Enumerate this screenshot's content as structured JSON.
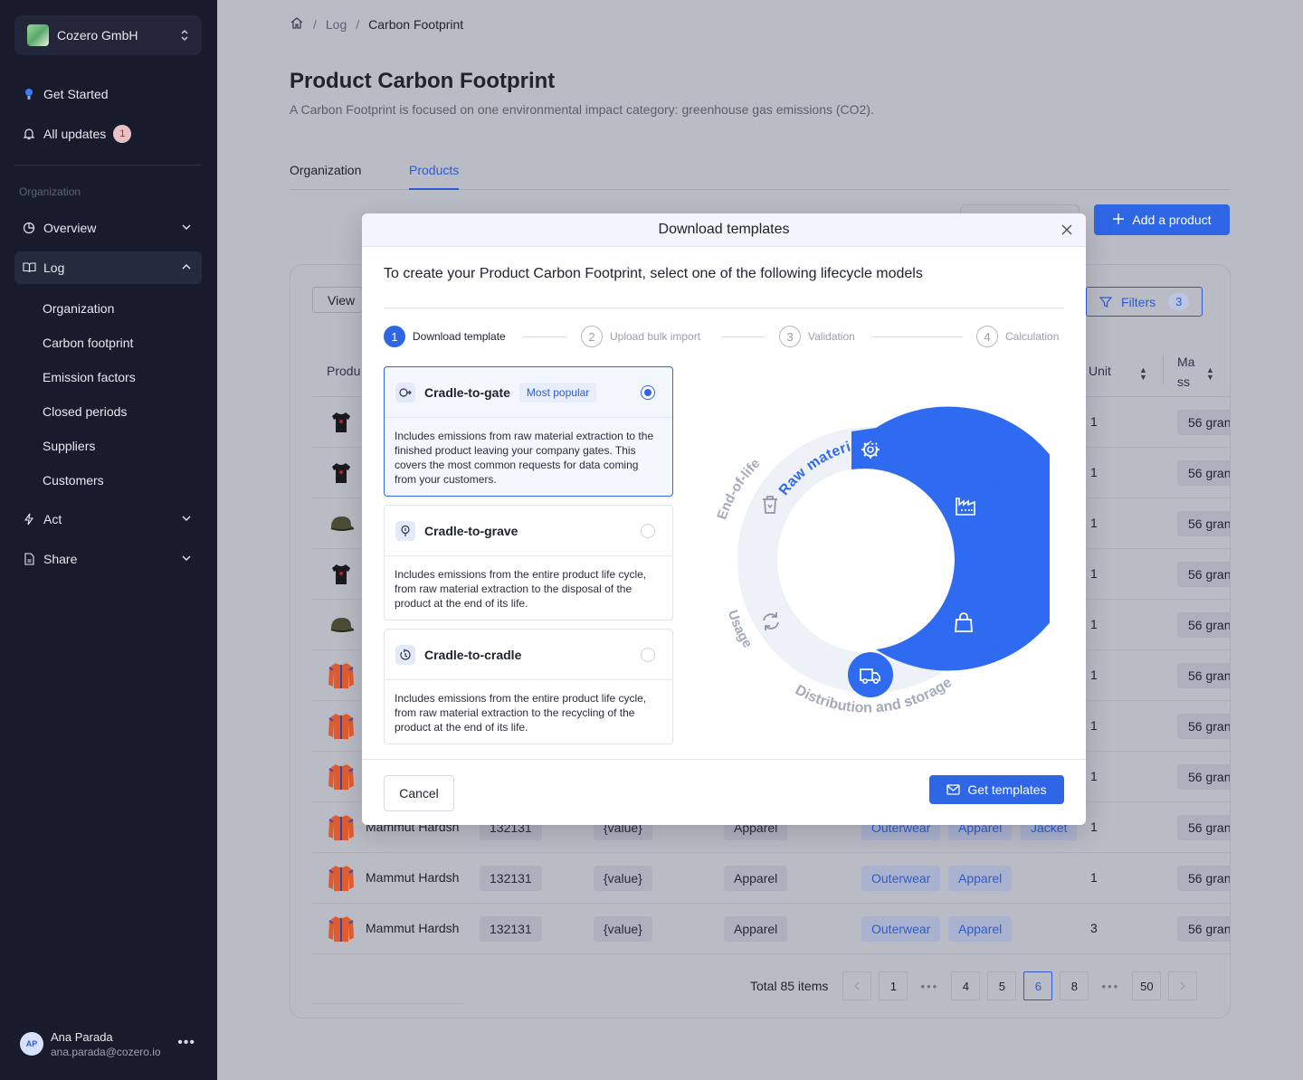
{
  "sidebar": {
    "org_name": "Cozero GmbH",
    "get_started": "Get Started",
    "all_updates": "All updates",
    "updates_count": "1",
    "section_label": "Organization",
    "overview": "Overview",
    "log": "Log",
    "log_items": [
      "Organization",
      "Carbon footprint",
      "Emission factors",
      "Closed periods",
      "Suppliers",
      "Customers"
    ],
    "act": "Act",
    "share": "Share",
    "user": {
      "initials": "AP",
      "name": "Ana Parada",
      "email": "ana.parada@cozero.io"
    }
  },
  "breadcrumb": {
    "level1": "Log",
    "level2": "Carbon Footprint",
    "sep": "/"
  },
  "page": {
    "title": "Product Carbon Footprint",
    "subtitle": "A Carbon Footprint is focused on one environmental impact category: greenhouse gas emissions (CO2).",
    "tabs": [
      "Organization",
      "Products"
    ],
    "add_product": "Add a product"
  },
  "table": {
    "view_label": "View",
    "filters_label": "Filters",
    "filters_count": "3",
    "col_product": "Produ",
    "col_unit": "Unit",
    "col_mass": "Ma ss",
    "rows": [
      {
        "type": "tshirt",
        "unit": "1",
        "mass": "56 gran"
      },
      {
        "type": "tshirt",
        "unit": "1",
        "mass": "56 gran"
      },
      {
        "type": "cap",
        "unit": "1",
        "mass": "56 gran"
      },
      {
        "type": "tshirt",
        "unit": "1",
        "mass": "56 gran"
      },
      {
        "type": "cap",
        "unit": "1",
        "mass": "56 gran"
      },
      {
        "type": "jacket",
        "unit": "1",
        "mass": "56 gran"
      },
      {
        "type": "jacket",
        "unit": "1",
        "mass": "56 gran"
      },
      {
        "type": "jacket",
        "unit": "1",
        "mass": "56 gran"
      },
      {
        "type": "jacket",
        "name": "Mammut Hardsh",
        "id": "132131",
        "value": "{value}",
        "cat": "Apparel",
        "tag1": "Outerwear",
        "tag2": "Apparel",
        "tag3": "Jacket",
        "unit": "1",
        "mass": "56 gran"
      },
      {
        "type": "jacket",
        "name": "Mammut Hardsh",
        "id": "132131",
        "value": "{value}",
        "cat": "Apparel",
        "tag1": "Outerwear",
        "tag2": "Apparel",
        "unit": "1",
        "mass": "56 gran"
      },
      {
        "type": "jacket",
        "name": "Mammut Hardsh",
        "id": "132131",
        "value": "{value}",
        "cat": "Apparel",
        "tag1": "Outerwear",
        "tag2": "Apparel",
        "unit": "3",
        "mass": "56 gran"
      }
    ],
    "pagination": {
      "total": "Total 85 items",
      "pages": [
        "1",
        "4",
        "5",
        "6",
        "8",
        "50"
      ],
      "current": "6",
      "dots": "•••"
    }
  },
  "modal": {
    "title": "Download templates",
    "intro": "To create your Product Carbon Footprint, select one of the following lifecycle models",
    "steps": [
      {
        "num": "1",
        "label": "Download template"
      },
      {
        "num": "2",
        "label": "Upload bulk import"
      },
      {
        "num": "3",
        "label": "Validation"
      },
      {
        "num": "4",
        "label": "Calculation"
      }
    ],
    "options": [
      {
        "title": "Cradle-to-gate",
        "badge": "Most popular",
        "selected": true,
        "desc": "Includes emissions from raw material extraction to the finished product leaving your company gates. This covers the most common requests for data coming from your customers."
      },
      {
        "title": "Cradle-to-grave",
        "selected": false,
        "desc": "Includes emissions from the entire product life cycle, from raw material extraction to the disposal of the product at the end of its life."
      },
      {
        "title": "Cradle-to-cradle",
        "selected": false,
        "desc": " Includes emissions from the entire product life cycle, from raw material extraction to the recycling of the product at the end of its life."
      }
    ],
    "lifecycle": {
      "raw": "Raw material acquisition",
      "production": "Production",
      "packaging": "Packaging",
      "distribution": "Distribution and storage",
      "usage": "Usage",
      "eol": "End-of-life",
      "active_color": "#2f6bf0",
      "inactive_color": "#eef1f8"
    },
    "cancel": "Cancel",
    "get": "Get templates"
  }
}
